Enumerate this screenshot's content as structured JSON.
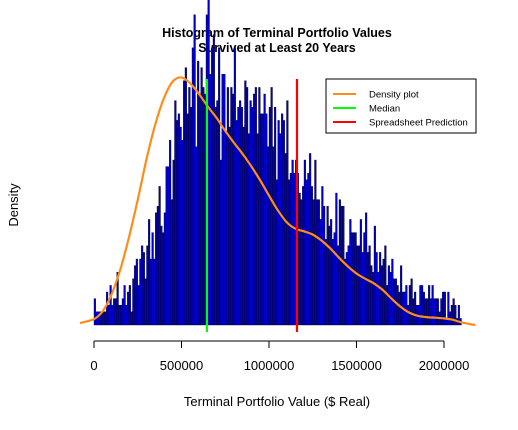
{
  "chart_data": {
    "type": "bar",
    "title_line1": "Histogram of Terminal Portfolio Values",
    "title_line2": "Survived at Least 20 Years",
    "xlabel": "Terminal Portfolio Value ($ Real)",
    "ylabel": "Density",
    "xlim": [
      -80000,
      2180000
    ],
    "x_ticks": [
      0,
      500000,
      1000000,
      1500000,
      2000000
    ],
    "x_tick_labels": [
      "0",
      "500000",
      "1000000",
      "1500000",
      "2000000"
    ],
    "y_axis_drawn": false,
    "bin_width": 10000,
    "bar_fill": "#0000cc",
    "bar_stroke": "#000000",
    "bins_start": 0,
    "bin_counts": [
      4,
      2,
      2,
      2,
      2,
      2,
      2,
      5,
      3,
      6,
      3,
      4,
      4,
      8,
      3,
      3,
      4,
      6,
      3,
      5,
      6,
      2,
      7,
      9,
      10,
      6,
      10,
      12,
      11,
      7,
      12,
      16,
      10,
      14,
      10,
      17,
      18,
      21,
      15,
      14,
      17,
      24,
      24,
      28,
      19,
      25,
      34,
      31,
      32,
      30,
      28,
      37,
      39,
      32,
      36,
      33,
      42,
      47,
      27,
      40,
      35,
      39,
      36,
      35,
      47,
      50,
      38,
      42,
      44,
      33,
      34,
      42,
      25,
      38,
      38,
      29,
      36,
      30,
      36,
      35,
      42,
      31,
      33,
      34,
      33,
      30,
      37,
      36,
      29,
      34,
      33,
      35,
      36,
      29,
      36,
      32,
      32,
      35,
      32,
      27,
      33,
      36,
      27,
      33,
      22,
      31,
      29,
      32,
      31,
      26,
      34,
      22,
      23,
      25,
      23,
      25,
      23,
      20,
      19,
      21,
      25,
      22,
      23,
      26,
      21,
      19,
      25,
      19,
      19,
      16,
      21,
      18,
      13,
      18,
      15,
      16,
      13,
      14,
      20,
      12,
      19,
      18,
      18,
      10,
      11,
      12,
      16,
      14,
      14,
      14,
      12,
      12,
      16,
      11,
      14,
      17,
      11,
      12,
      9,
      8,
      15,
      11,
      8,
      11,
      9,
      10,
      12,
      6,
      9,
      8,
      10,
      7,
      7,
      6,
      5,
      9,
      5,
      5,
      6,
      3,
      6,
      7,
      4,
      5,
      3,
      3,
      6,
      6,
      5,
      4,
      4,
      6,
      4,
      6,
      4,
      4,
      4,
      2,
      4,
      5,
      5,
      1,
      5,
      2,
      3,
      4,
      3,
      1,
      3,
      1
    ],
    "series": [
      {
        "name": "Density plot",
        "color": "#ff8c1a",
        "x": [
          -80000,
          0,
          50000,
          100000,
          150000,
          200000,
          250000,
          300000,
          350000,
          400000,
          450000,
          500000,
          550000,
          600000,
          650000,
          700000,
          750000,
          800000,
          850000,
          900000,
          950000,
          1000000,
          1050000,
          1100000,
          1150000,
          1200000,
          1250000,
          1300000,
          1350000,
          1400000,
          1450000,
          1500000,
          1550000,
          1600000,
          1650000,
          1700000,
          1750000,
          1800000,
          1850000,
          1900000,
          1950000,
          2000000,
          2050000,
          2100000,
          2180000
        ],
        "y": [
          0.3,
          0.9,
          2.1,
          4.6,
          8.4,
          13.3,
          19.0,
          25.1,
          30.4,
          34.4,
          36.9,
          37.5,
          36.6,
          35.0,
          33.1,
          31.4,
          29.4,
          27.6,
          25.9,
          24.0,
          21.9,
          19.6,
          17.4,
          15.6,
          14.6,
          14.2,
          13.7,
          12.8,
          11.6,
          10.2,
          8.9,
          7.8,
          7.0,
          6.3,
          5.3,
          4.0,
          2.8,
          1.9,
          1.4,
          1.2,
          1.1,
          1.0,
          0.8,
          0.4,
          0.0
        ]
      }
    ],
    "vlines": [
      {
        "name": "Median",
        "x": 645000,
        "color": "#00ff00"
      },
      {
        "name": "Spreadsheet Prediction",
        "x": 1160000,
        "color": "#ff0000"
      }
    ],
    "legend_position": "top-right",
    "legend": [
      {
        "label": "Density plot",
        "color": "#ff8c1a"
      },
      {
        "label": "Median",
        "color": "#00ff00"
      },
      {
        "label": "Spreadsheet Prediction",
        "color": "#ff0000"
      }
    ]
  }
}
